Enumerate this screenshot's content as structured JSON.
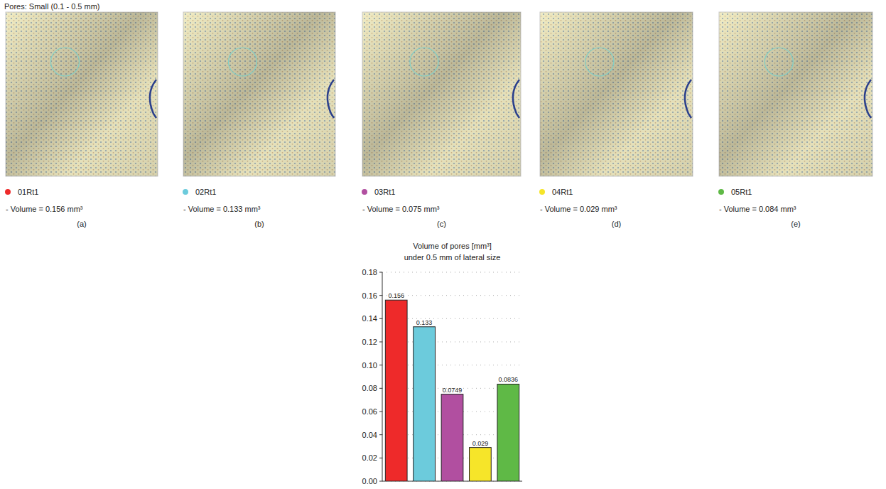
{
  "header": "Pores: Small (0.1 - 0.5 mm)",
  "panels": [
    {
      "label": "01Rt1",
      "volume": "- Volume = 0.156 mm³",
      "letter": "(a)",
      "color": "#ee2a2a"
    },
    {
      "label": "02Rt1",
      "volume": "- Volume = 0.133 mm³",
      "letter": "(b)",
      "color": "#6ccbdc"
    },
    {
      "label": "03Rt1",
      "volume": "- Volume = 0.075 mm³",
      "letter": "(c)",
      "color": "#b14fa0"
    },
    {
      "label": "04Rt1",
      "volume": "- Volume = 0.029 mm³",
      "letter": "(d)",
      "color": "#f6e529"
    },
    {
      "label": "05Rt1",
      "volume": "- Volume = 0.084 mm³",
      "letter": "(e)",
      "color": "#5fb946"
    }
  ],
  "chart_data": {
    "type": "bar",
    "title": "Volume of pores [mm³]",
    "subtitle": "under 0.5 mm of lateral size",
    "categories": [
      null,
      null,
      null,
      null,
      null
    ],
    "values": [
      0.156,
      0.133,
      0.0749,
      0.029,
      0.0836
    ],
    "colors": [
      "#ee2a2a",
      "#6ccbdc",
      "#b14fa0",
      "#f6e529",
      "#5fb946"
    ],
    "ylim": [
      0,
      0.18
    ],
    "yticks": [
      {
        "value": 0,
        "label": "0.00"
      },
      {
        "value": 0.02,
        "label": "0.02"
      },
      {
        "value": 0.04,
        "label": "0.04"
      },
      {
        "value": 0.06,
        "label": "0.06"
      },
      {
        "value": 0.08,
        "label": "0.08"
      },
      {
        "value": 0.1,
        "label": "0.10"
      },
      {
        "value": 0.12,
        "label": "0.12"
      },
      {
        "value": 0.14,
        "label": "0.14"
      },
      {
        "value": 0.16,
        "label": "0.16"
      },
      {
        "value": 0.18,
        "label": "0.18"
      }
    ],
    "grid": true,
    "data_labels": true,
    "tick_labels": "y"
  }
}
